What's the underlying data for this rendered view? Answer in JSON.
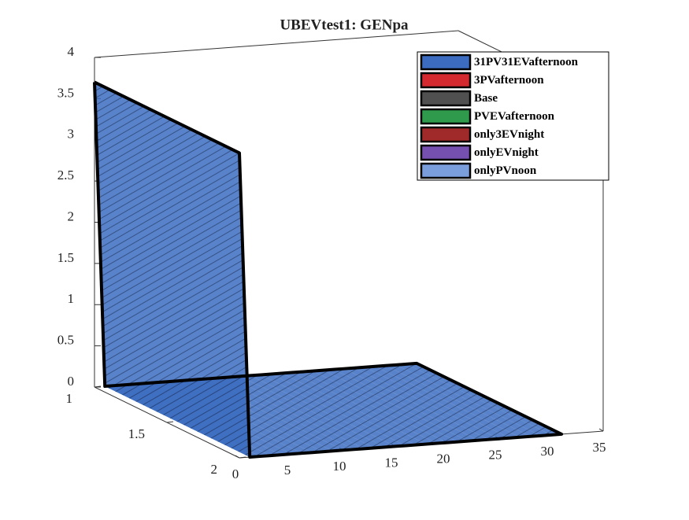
{
  "chart_data": {
    "type": "ribbon3d",
    "title": "UBEVtest1: GENpa",
    "x": [
      0,
      1,
      2,
      3,
      4,
      5,
      6,
      7,
      8,
      9,
      10,
      11,
      12,
      13,
      14,
      15,
      16,
      17,
      18,
      19,
      20,
      21,
      22,
      23,
      24,
      25,
      26,
      27,
      28,
      29,
      30,
      31
    ],
    "depth": [
      1,
      2
    ],
    "series": [
      {
        "name": "31PV31EVafternoon",
        "color": "#3b6cc0",
        "values": [
          3.7,
          0,
          0,
          0,
          0,
          0,
          0,
          0,
          0,
          0,
          0,
          0,
          0,
          0,
          0,
          0,
          0,
          0,
          0,
          0,
          0,
          0,
          0,
          0,
          0,
          0,
          0,
          0,
          0,
          0,
          0,
          0
        ]
      },
      {
        "name": "3PVafternoon",
        "color": "#d42a2f"
      },
      {
        "name": "Base",
        "color": "#505050"
      },
      {
        "name": "PVEVafternoon",
        "color": "#2f9a4c"
      },
      {
        "name": "only3EVnight",
        "color": "#a02a2a"
      },
      {
        "name": "onlyEVnight",
        "color": "#7650ae"
      },
      {
        "name": "onlyPVnoon",
        "color": "#7a9edc"
      }
    ],
    "xlim": [
      0,
      35
    ],
    "xticks": [
      0,
      5,
      10,
      15,
      20,
      25,
      30,
      35
    ],
    "dlim": [
      1,
      2
    ],
    "dticks": [
      1,
      1.5,
      2
    ],
    "zlim": [
      0,
      4
    ],
    "zticks": [
      0,
      0.5,
      1,
      1.5,
      2,
      2.5,
      3,
      3.5,
      4
    ],
    "legend_position": "northeast"
  }
}
